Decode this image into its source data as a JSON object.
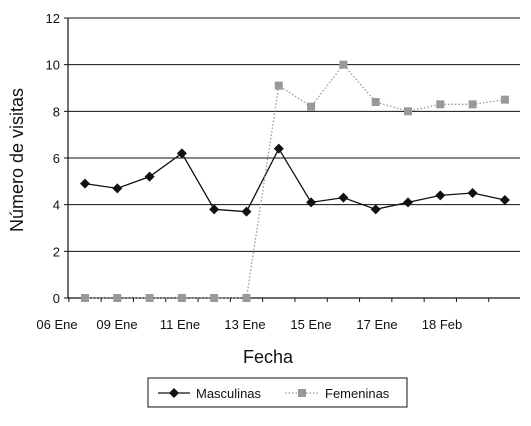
{
  "chart_data": {
    "type": "line",
    "title": "",
    "xlabel": "Fecha",
    "ylabel": "Número de visitas",
    "ylim": [
      0,
      12
    ],
    "yticks": [
      0,
      2,
      4,
      6,
      8,
      10,
      12
    ],
    "grid": "horizontal",
    "legend_position": "bottom",
    "x_tick_labels": [
      "06 Ene",
      "09 Ene",
      "11 Ene",
      "13 Ene",
      "15 Ene",
      "17 Ene",
      "18 Feb"
    ],
    "x_points": 14,
    "series": [
      {
        "name": "Masculinas",
        "color": "#111111",
        "marker": "diamond",
        "line_style": "solid",
        "values": [
          4.9,
          4.7,
          5.2,
          6.2,
          3.8,
          3.7,
          6.4,
          4.1,
          4.3,
          3.8,
          4.1,
          4.4,
          4.5,
          4.2
        ]
      },
      {
        "name": "Femeninas",
        "color": "#999999",
        "marker": "square",
        "line_style": "dotted",
        "values": [
          0,
          0,
          0,
          0,
          0,
          0,
          9.1,
          8.2,
          10.0,
          8.4,
          8.0,
          8.3,
          8.3,
          8.5
        ]
      }
    ]
  }
}
